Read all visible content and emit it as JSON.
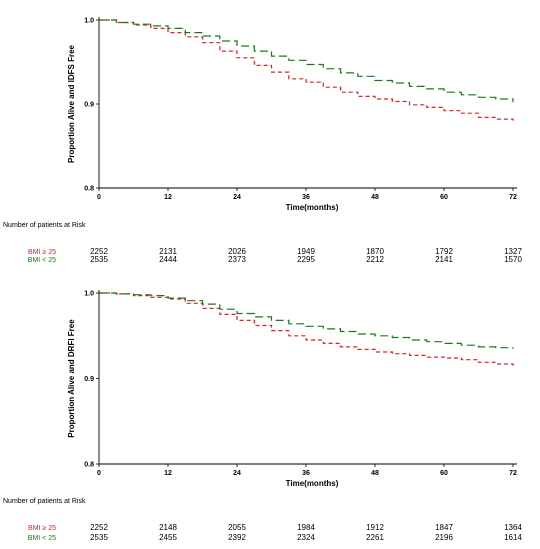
{
  "colors": {
    "bmi_ge25": "#e02020",
    "bmi_lt25": "#1a7a1a"
  },
  "chart_data": [
    {
      "type": "line",
      "ylabel": "Proportion Alive and IDFS Free",
      "xlabel": "Time(months)",
      "xlim": [
        0,
        72
      ],
      "ylim": [
        0.8,
        1.0
      ],
      "xticks": [
        "0",
        "12",
        "24",
        "36",
        "48",
        "60",
        "72"
      ],
      "yticks": [
        "0.8",
        "0.9",
        "1.0"
      ],
      "series": [
        {
          "name": "BMI ≥ 25",
          "color": "#e02020",
          "x": [
            0,
            3,
            6,
            9,
            12,
            15,
            18,
            21,
            24,
            27,
            30,
            33,
            36,
            39,
            42,
            45,
            48,
            51,
            54,
            57,
            60,
            63,
            66,
            69,
            72
          ],
          "y": [
            1.0,
            0.997,
            0.994,
            0.99,
            0.985,
            0.98,
            0.973,
            0.963,
            0.955,
            0.946,
            0.938,
            0.93,
            0.926,
            0.92,
            0.914,
            0.909,
            0.906,
            0.903,
            0.899,
            0.896,
            0.892,
            0.889,
            0.884,
            0.882,
            0.88
          ]
        },
        {
          "name": "BMI < 25",
          "color": "#1a7a1a",
          "x": [
            0,
            3,
            6,
            9,
            12,
            15,
            18,
            21,
            24,
            27,
            30,
            33,
            36,
            39,
            42,
            45,
            48,
            51,
            54,
            57,
            60,
            63,
            66,
            69,
            72
          ],
          "y": [
            1.0,
            0.997,
            0.995,
            0.993,
            0.99,
            0.985,
            0.981,
            0.975,
            0.969,
            0.963,
            0.957,
            0.952,
            0.947,
            0.942,
            0.937,
            0.933,
            0.928,
            0.925,
            0.921,
            0.918,
            0.914,
            0.911,
            0.908,
            0.906,
            0.902
          ]
        }
      ]
    },
    {
      "type": "line",
      "ylabel": "Proportion Alive and DRFI Free",
      "xlabel": "Time(months)",
      "xlim": [
        0,
        72
      ],
      "ylim": [
        0.8,
        1.0
      ],
      "xticks": [
        "0",
        "12",
        "24",
        "36",
        "48",
        "60",
        "72"
      ],
      "yticks": [
        "0.8",
        "0.9",
        "1.0"
      ],
      "series": [
        {
          "name": "BMI ≥ 25",
          "color": "#e02020",
          "x": [
            0,
            3,
            6,
            9,
            12,
            15,
            18,
            21,
            24,
            27,
            30,
            33,
            36,
            39,
            42,
            45,
            48,
            51,
            54,
            57,
            60,
            63,
            66,
            69,
            72
          ],
          "y": [
            1.0,
            0.999,
            0.997,
            0.995,
            0.993,
            0.988,
            0.982,
            0.975,
            0.968,
            0.962,
            0.956,
            0.95,
            0.945,
            0.941,
            0.937,
            0.934,
            0.931,
            0.929,
            0.927,
            0.925,
            0.924,
            0.922,
            0.919,
            0.917,
            0.915
          ]
        },
        {
          "name": "BMI < 25",
          "color": "#1a7a1a",
          "x": [
            0,
            3,
            6,
            9,
            12,
            15,
            18,
            21,
            24,
            27,
            30,
            33,
            36,
            39,
            42,
            45,
            48,
            51,
            54,
            57,
            60,
            63,
            66,
            69,
            72
          ],
          "y": [
            1.0,
            0.999,
            0.998,
            0.997,
            0.994,
            0.991,
            0.987,
            0.981,
            0.976,
            0.972,
            0.968,
            0.964,
            0.961,
            0.958,
            0.955,
            0.952,
            0.95,
            0.948,
            0.945,
            0.943,
            0.941,
            0.939,
            0.937,
            0.936,
            0.935
          ]
        }
      ]
    }
  ],
  "risk_tables": [
    {
      "title": "Number of patients at Risk",
      "rows": [
        {
          "label": "BMI ≥ 25",
          "values": [
            "2252",
            "2131",
            "2026",
            "1949",
            "1870",
            "1792",
            "1327"
          ]
        },
        {
          "label": "BMI < 25",
          "values": [
            "2535",
            "2444",
            "2373",
            "2295",
            "2212",
            "2141",
            "1570"
          ]
        }
      ]
    },
    {
      "title": "Number of patients at Risk",
      "rows": [
        {
          "label": "BMI ≥ 25",
          "values": [
            "2252",
            "2148",
            "2055",
            "1984",
            "1912",
            "1847",
            "1364"
          ]
        },
        {
          "label": "BMI < 25",
          "values": [
            "2535",
            "2455",
            "2392",
            "2324",
            "2261",
            "2196",
            "1614"
          ]
        }
      ]
    }
  ]
}
